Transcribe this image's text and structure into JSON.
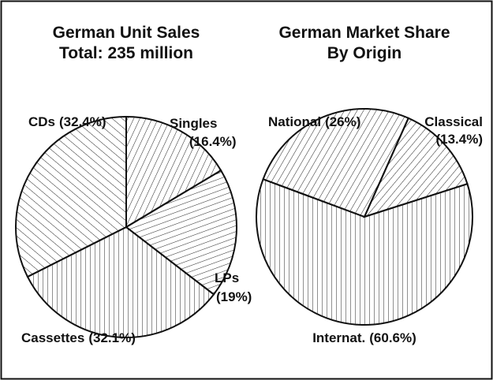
{
  "chart_data": [
    {
      "type": "pie",
      "title": "German Unit Sales",
      "subtitle": "Total: 235 million",
      "categories": [
        "Singles",
        "LPs",
        "Cassettes",
        "CDs"
      ],
      "values": [
        16.4,
        19,
        32.1,
        32.4
      ],
      "value_labels": [
        "(16.4%)",
        "(19%)",
        "(32.1%)",
        "(32.4%)"
      ]
    },
    {
      "type": "pie",
      "title": "German Market Share",
      "subtitle": "By Origin",
      "categories": [
        "Classical",
        "Internat.",
        "National"
      ],
      "values": [
        13.4,
        60.6,
        26
      ],
      "value_labels": [
        "(13.4%)",
        "(60.6%)",
        "(26%)"
      ]
    }
  ]
}
